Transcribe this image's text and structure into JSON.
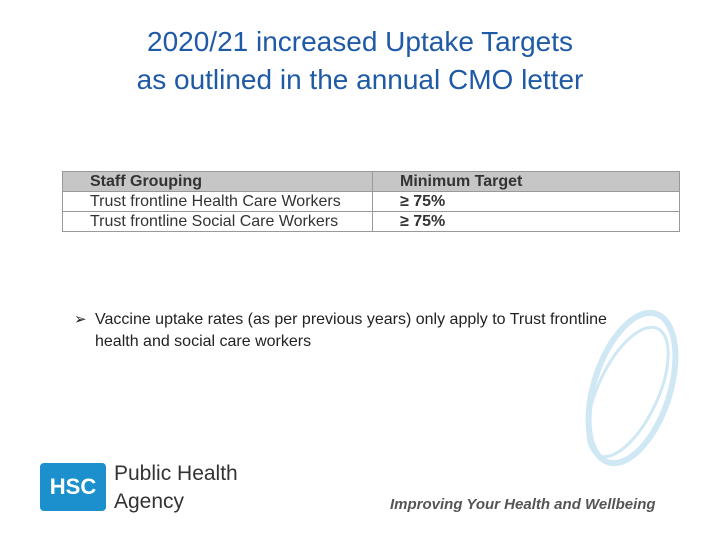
{
  "title": {
    "lines": [
      "2020/21 increased Uptake Targets",
      "as outlined in the annual CMO letter"
    ]
  },
  "table": {
    "header": [
      "Staff Grouping",
      "Minimum Target"
    ],
    "rows": [
      [
        "Trust frontline Health Care Workers",
        "≥ 75%"
      ],
      [
        "Trust frontline Social Care Workers",
        "≥ 75%"
      ]
    ]
  },
  "bullet": "Vaccine uptake rates (as per previous years) only apply to Trust frontline health and social care workers",
  "logo": {
    "mark": "HSC",
    "line1": "Public Health",
    "line2": "Agency"
  },
  "tagline": "Improving Your Health and Wellbeing"
}
